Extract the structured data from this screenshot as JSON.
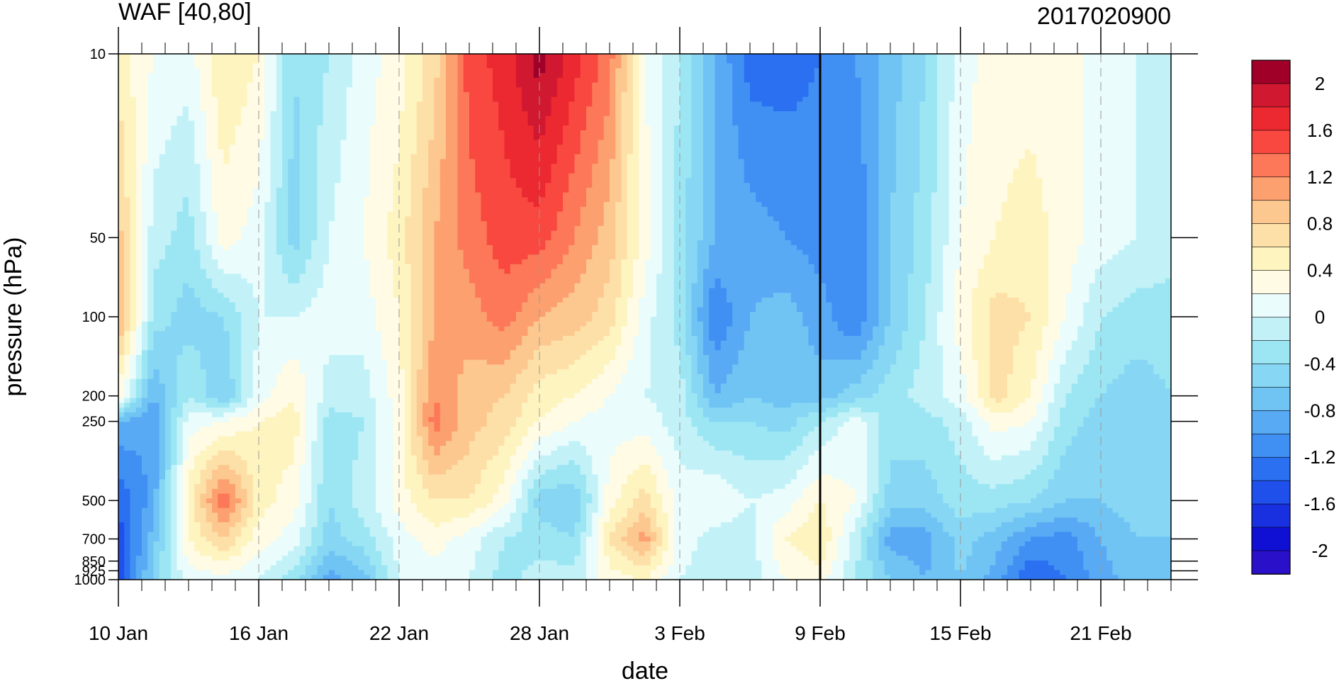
{
  "chart_data": {
    "type": "heatmap",
    "title": "WAF [40,80]",
    "subtitle": "2017020900",
    "xlabel": "date",
    "ylabel": "pressure (hPa)",
    "x_ticks": [
      "10 Jan",
      "16 Jan",
      "22 Jan",
      "28 Jan",
      "3 Feb",
      "9 Feb",
      "15 Feb",
      "21 Feb"
    ],
    "x_range": [
      "2017-01-10",
      "2017-02-24"
    ],
    "y_ticks": [
      10,
      50,
      100,
      200,
      250,
      500,
      700,
      850,
      925,
      1000
    ],
    "y_range": [
      1000,
      10
    ],
    "y_scale": "log",
    "marker_date": "2017-02-09",
    "colorbar": {
      "levels": [
        -2.2,
        -2,
        -1.8,
        -1.6,
        -1.4,
        -1.2,
        -1,
        -0.8,
        -0.6,
        -0.4,
        -0.2,
        0,
        0.2,
        0.4,
        0.6,
        0.8,
        1,
        1.2,
        1.4,
        1.6,
        1.8,
        2,
        2.2
      ],
      "labels": [
        "2",
        "1.6",
        "1.2",
        "0.8",
        "0.4",
        "0",
        "-0.4",
        "-0.8",
        "-1.2",
        "-1.6",
        "-2"
      ],
      "colors": [
        "#a00028",
        "#d01830",
        "#ec2830",
        "#f84840",
        "#fc7858",
        "#fca070",
        "#fcc890",
        "#fde0a8",
        "#fef4c0",
        "#fffbe4",
        "#eafcfc",
        "#c2f2f8",
        "#9ce6f4",
        "#86d6f4",
        "#70c4f4",
        "#58aaf4",
        "#4090f4",
        "#2a70f0",
        "#2050ec",
        "#1830e0",
        "#1010d4",
        "#2a10c8"
      ]
    },
    "columns": [
      {
        "date": "2017-01-10",
        "x": 0,
        "profile": [
          [
            10,
            0.5
          ],
          [
            50,
            0.9
          ],
          [
            100,
            1.1
          ],
          [
            200,
            0.3
          ],
          [
            250,
            -0.8
          ],
          [
            500,
            -1.4
          ],
          [
            700,
            -1.5
          ],
          [
            1000,
            -1.6
          ]
        ]
      },
      {
        "date": "2017-01-11.5",
        "x": 1.5,
        "profile": [
          [
            10,
            0.2
          ],
          [
            50,
            -0.1
          ],
          [
            100,
            -0.3
          ],
          [
            200,
            -0.8
          ],
          [
            250,
            -1.0
          ],
          [
            500,
            -0.9
          ],
          [
            700,
            -0.7
          ],
          [
            1000,
            -0.5
          ]
        ]
      },
      {
        "date": "2017-01-13",
        "x": 3,
        "profile": [
          [
            10,
            0.1
          ],
          [
            50,
            -0.3
          ],
          [
            100,
            -0.5
          ],
          [
            200,
            -0.2
          ],
          [
            250,
            0.1
          ],
          [
            500,
            0.5
          ],
          [
            700,
            0.4
          ],
          [
            1000,
            0.1
          ]
        ]
      },
      {
        "date": "2017-01-14.5",
        "x": 4.5,
        "profile": [
          [
            10,
            0.6
          ],
          [
            50,
            0.3
          ],
          [
            100,
            -0.4
          ],
          [
            200,
            -0.6
          ],
          [
            250,
            0.2
          ],
          [
            500,
            1.4
          ],
          [
            700,
            0.8
          ],
          [
            1000,
            0.1
          ]
        ]
      },
      {
        "date": "2017-01-16",
        "x": 6,
        "profile": [
          [
            10,
            0.4
          ],
          [
            50,
            0.1
          ],
          [
            100,
            0.0
          ],
          [
            200,
            0.1
          ],
          [
            250,
            0.4
          ],
          [
            500,
            0.5
          ],
          [
            700,
            0.3
          ],
          [
            1000,
            0.0
          ]
        ]
      },
      {
        "date": "2017-01-17.5",
        "x": 7.5,
        "profile": [
          [
            10,
            -0.4
          ],
          [
            50,
            -0.5
          ],
          [
            100,
            0.0
          ],
          [
            200,
            0.4
          ],
          [
            250,
            0.5
          ],
          [
            500,
            0.3
          ],
          [
            700,
            0.1
          ],
          [
            1000,
            -0.3
          ]
        ]
      },
      {
        "date": "2017-01-19",
        "x": 9,
        "profile": [
          [
            10,
            -0.2
          ],
          [
            50,
            0.0
          ],
          [
            100,
            0.1
          ],
          [
            200,
            -0.1
          ],
          [
            250,
            -0.3
          ],
          [
            500,
            -0.4
          ],
          [
            700,
            -0.5
          ],
          [
            1000,
            -0.9
          ]
        ]
      },
      {
        "date": "2017-01-20.5",
        "x": 10.5,
        "profile": [
          [
            10,
            0.1
          ],
          [
            50,
            0.2
          ],
          [
            100,
            0.1
          ],
          [
            200,
            -0.1
          ],
          [
            250,
            -0.2
          ],
          [
            500,
            -0.1
          ],
          [
            700,
            -0.3
          ],
          [
            1000,
            -0.7
          ]
        ]
      },
      {
        "date": "2017-01-22",
        "x": 12,
        "profile": [
          [
            10,
            0.3
          ],
          [
            50,
            0.5
          ],
          [
            100,
            0.4
          ],
          [
            200,
            0.3
          ],
          [
            250,
            0.3
          ],
          [
            500,
            0.3
          ],
          [
            700,
            0.1
          ],
          [
            1000,
            0.0
          ]
        ]
      },
      {
        "date": "2017-01-23.5",
        "x": 13.5,
        "profile": [
          [
            10,
            0.7
          ],
          [
            50,
            1.0
          ],
          [
            100,
            1.0
          ],
          [
            200,
            1.2
          ],
          [
            250,
            1.3
          ],
          [
            500,
            0.6
          ],
          [
            700,
            0.3
          ],
          [
            1000,
            0.1
          ]
        ]
      },
      {
        "date": "2017-01-25",
        "x": 15,
        "profile": [
          [
            10,
            1.5
          ],
          [
            50,
            1.3
          ],
          [
            100,
            1.1
          ],
          [
            200,
            0.9
          ],
          [
            250,
            0.9
          ],
          [
            500,
            0.6
          ],
          [
            700,
            0.1
          ],
          [
            1000,
            0.0
          ]
        ]
      },
      {
        "date": "2017-01-26.5",
        "x": 16.5,
        "profile": [
          [
            10,
            1.7
          ],
          [
            50,
            1.5
          ],
          [
            100,
            1.3
          ],
          [
            200,
            0.8
          ],
          [
            250,
            0.7
          ],
          [
            500,
            0.3
          ],
          [
            700,
            -0.2
          ],
          [
            1000,
            -0.3
          ]
        ]
      },
      {
        "date": "2017-01-28",
        "x": 18,
        "profile": [
          [
            10,
            2.1
          ],
          [
            50,
            1.5
          ],
          [
            100,
            1.0
          ],
          [
            200,
            0.5
          ],
          [
            250,
            0.4
          ],
          [
            500,
            -0.5
          ],
          [
            700,
            -0.3
          ],
          [
            1000,
            -0.1
          ]
        ]
      },
      {
        "date": "2017-01-29.5",
        "x": 19.5,
        "profile": [
          [
            10,
            1.7
          ],
          [
            50,
            1.2
          ],
          [
            100,
            0.9
          ],
          [
            200,
            0.4
          ],
          [
            250,
            0.2
          ],
          [
            500,
            -0.6
          ],
          [
            700,
            -0.4
          ],
          [
            1000,
            -0.1
          ]
        ]
      },
      {
        "date": "2017-01-31",
        "x": 21,
        "profile": [
          [
            10,
            1.3
          ],
          [
            50,
            0.9
          ],
          [
            100,
            0.7
          ],
          [
            200,
            0.2
          ],
          [
            250,
            0.1
          ],
          [
            500,
            0.3
          ],
          [
            700,
            0.6
          ],
          [
            1000,
            0.3
          ]
        ]
      },
      {
        "date": "2017-02-01.5",
        "x": 22.5,
        "profile": [
          [
            10,
            0.2
          ],
          [
            50,
            0.3
          ],
          [
            100,
            0.1
          ],
          [
            200,
            0.0
          ],
          [
            250,
            0.1
          ],
          [
            500,
            0.7
          ],
          [
            700,
            1.1
          ],
          [
            1000,
            0.4
          ]
        ]
      },
      {
        "date": "2017-02-03",
        "x": 24,
        "profile": [
          [
            10,
            -0.2
          ],
          [
            50,
            -0.3
          ],
          [
            100,
            -0.3
          ],
          [
            200,
            -0.1
          ],
          [
            250,
            -0.1
          ],
          [
            500,
            0.1
          ],
          [
            700,
            0.1
          ],
          [
            1000,
            0.0
          ]
        ]
      },
      {
        "date": "2017-02-04.5",
        "x": 25.5,
        "profile": [
          [
            10,
            -0.8
          ],
          [
            50,
            -0.8
          ],
          [
            100,
            -1.2
          ],
          [
            200,
            -0.8
          ],
          [
            250,
            -0.4
          ],
          [
            500,
            0.2
          ],
          [
            700,
            -0.1
          ],
          [
            1000,
            -0.1
          ]
        ]
      },
      {
        "date": "2017-02-06",
        "x": 27,
        "profile": [
          [
            10,
            -1.3
          ],
          [
            50,
            -0.9
          ],
          [
            100,
            -0.8
          ],
          [
            200,
            -0.6
          ],
          [
            250,
            -0.4
          ],
          [
            500,
            0.0
          ],
          [
            700,
            -0.1
          ],
          [
            1000,
            -0.1
          ]
        ]
      },
      {
        "date": "2017-02-07.5",
        "x": 28.5,
        "profile": [
          [
            10,
            -1.3
          ],
          [
            50,
            -1.0
          ],
          [
            100,
            -0.7
          ],
          [
            200,
            -0.7
          ],
          [
            250,
            -0.5
          ],
          [
            500,
            0.1
          ],
          [
            700,
            0.4
          ],
          [
            1000,
            0.2
          ]
        ]
      },
      {
        "date": "2017-02-09",
        "x": 30,
        "profile": [
          [
            10,
            -1.2
          ],
          [
            50,
            -1.1
          ],
          [
            100,
            -0.9
          ],
          [
            200,
            -0.7
          ],
          [
            250,
            -0.2
          ],
          [
            500,
            0.4
          ],
          [
            700,
            0.6
          ],
          [
            1000,
            0.3
          ]
        ]
      },
      {
        "date": "2017-02-10.5",
        "x": 31.5,
        "profile": [
          [
            10,
            -1.0
          ],
          [
            50,
            -1.2
          ],
          [
            100,
            -1.2
          ],
          [
            200,
            -0.5
          ],
          [
            250,
            0.1
          ],
          [
            500,
            0.2
          ],
          [
            700,
            -0.1
          ],
          [
            1000,
            -0.2
          ]
        ]
      },
      {
        "date": "2017-02-12",
        "x": 33,
        "profile": [
          [
            10,
            -0.7
          ],
          [
            50,
            -0.6
          ],
          [
            100,
            -0.6
          ],
          [
            200,
            -0.3
          ],
          [
            250,
            -0.3
          ],
          [
            500,
            -0.5
          ],
          [
            700,
            -0.9
          ],
          [
            1000,
            -0.6
          ]
        ]
      },
      {
        "date": "2017-02-13.5",
        "x": 34.5,
        "profile": [
          [
            10,
            -0.4
          ],
          [
            50,
            -0.3
          ],
          [
            100,
            -0.2
          ],
          [
            200,
            -0.1
          ],
          [
            250,
            -0.3
          ],
          [
            500,
            -0.5
          ],
          [
            700,
            -0.9
          ],
          [
            1000,
            -0.8
          ]
        ]
      },
      {
        "date": "2017-02-15",
        "x": 36,
        "profile": [
          [
            10,
            0.1
          ],
          [
            50,
            0.2
          ],
          [
            100,
            0.3
          ],
          [
            200,
            0.1
          ],
          [
            250,
            -0.1
          ],
          [
            500,
            -0.3
          ],
          [
            700,
            -0.5
          ],
          [
            1000,
            -0.6
          ]
        ]
      },
      {
        "date": "2017-02-16.5",
        "x": 37.5,
        "profile": [
          [
            10,
            0.3
          ],
          [
            50,
            0.4
          ],
          [
            100,
            0.7
          ],
          [
            200,
            0.7
          ],
          [
            250,
            0.3
          ],
          [
            500,
            -0.3
          ],
          [
            700,
            -0.7
          ],
          [
            1000,
            -0.9
          ]
        ]
      },
      {
        "date": "2017-02-18",
        "x": 39,
        "profile": [
          [
            10,
            0.3
          ],
          [
            50,
            0.5
          ],
          [
            100,
            0.6
          ],
          [
            200,
            0.4
          ],
          [
            250,
            0.2
          ],
          [
            500,
            -0.4
          ],
          [
            700,
            -1.0
          ],
          [
            1000,
            -1.4
          ]
        ]
      },
      {
        "date": "2017-02-19.5",
        "x": 40.5,
        "profile": [
          [
            10,
            0.3
          ],
          [
            50,
            0.3
          ],
          [
            100,
            0.2
          ],
          [
            200,
            -0.2
          ],
          [
            250,
            -0.3
          ],
          [
            500,
            -0.6
          ],
          [
            700,
            -1.1
          ],
          [
            1000,
            -1.2
          ]
        ]
      },
      {
        "date": "2017-02-21",
        "x": 42,
        "profile": [
          [
            10,
            0.1
          ],
          [
            50,
            0.1
          ],
          [
            100,
            -0.2
          ],
          [
            200,
            -0.4
          ],
          [
            250,
            -0.5
          ],
          [
            500,
            -0.6
          ],
          [
            700,
            -0.8
          ],
          [
            1000,
            -0.9
          ]
        ]
      },
      {
        "date": "2017-02-22.5",
        "x": 43.5,
        "profile": [
          [
            10,
            0.0
          ],
          [
            50,
            0.0
          ],
          [
            100,
            -0.3
          ],
          [
            200,
            -0.5
          ],
          [
            250,
            -0.5
          ],
          [
            500,
            -0.5
          ],
          [
            700,
            -0.6
          ],
          [
            1000,
            -0.7
          ]
        ]
      },
      {
        "date": "2017-02-24",
        "x": 45,
        "profile": [
          [
            10,
            0.0
          ],
          [
            50,
            -0.1
          ],
          [
            100,
            -0.3
          ],
          [
            200,
            -0.4
          ],
          [
            250,
            -0.5
          ],
          [
            500,
            -0.5
          ],
          [
            700,
            -0.6
          ],
          [
            1000,
            -0.6
          ]
        ]
      }
    ]
  }
}
